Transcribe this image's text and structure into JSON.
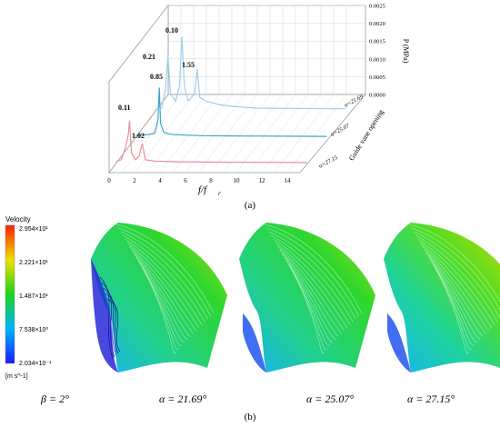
{
  "panel_a": {
    "caption": "(a)",
    "chart_data": {
      "type": "line",
      "projection": "3d-waterfall",
      "xlabel": "f/f",
      "xlabel_sub": "r",
      "zlabel": "P (MPa)",
      "ylabel": "Guide vane opening",
      "x_ticks": [
        "0",
        "2",
        "4",
        "6",
        "8",
        "10",
        "12",
        "14"
      ],
      "z_ticks": [
        "0.0000",
        "0.0005",
        "0.0010",
        "0.0015",
        "0.0020",
        "0.0025"
      ],
      "xlim": [
        0,
        15
      ],
      "zlim": [
        0,
        0.0025
      ],
      "series": [
        {
          "name": "α=27.15",
          "color": "#e88f9c",
          "points": [
            [
              0,
              5e-05
            ],
            [
              0.4,
              0.0001
            ],
            [
              0.7,
              0.0004
            ],
            [
              0.95,
              0.0008
            ],
            [
              1.05,
              0.0012
            ],
            [
              1.2,
              0.0003
            ],
            [
              1.5,
              0.0001
            ],
            [
              1.8,
              0.0002
            ],
            [
              2.04,
              0.00055
            ],
            [
              2.3,
              0.0001
            ],
            [
              3,
              6e-05
            ],
            [
              5,
              4e-05
            ],
            [
              8,
              3e-05
            ],
            [
              15,
              2e-05
            ]
          ]
        },
        {
          "name": "α=25.07",
          "color": "#3aa6c7",
          "points": [
            [
              0,
              5e-05
            ],
            [
              1,
              8e-05
            ],
            [
              1.5,
              0.00012
            ],
            [
              1.75,
              0.0005
            ],
            [
              1.85,
              0.0014
            ],
            [
              1.95,
              0.0004
            ],
            [
              2.2,
              0.00015
            ],
            [
              2.6,
              0.0001
            ],
            [
              3,
              8e-05
            ],
            [
              5,
              5e-05
            ],
            [
              8,
              4e-05
            ],
            [
              15,
              3e-05
            ]
          ]
        },
        {
          "name": "α=21.69",
          "color": "#9fd0ea",
          "points": [
            [
              0,
              5e-05
            ],
            [
              0.5,
              0.0001
            ],
            [
              0.8,
              0.0006
            ],
            [
              1,
              0.0016
            ],
            [
              1.2,
              0.0005
            ],
            [
              1.6,
              0.0003
            ],
            [
              1.9,
              0.0007
            ],
            [
              2.1,
              0.0021
            ],
            [
              2.3,
              0.0007
            ],
            [
              2.6,
              0.0003
            ],
            [
              3.1,
              0.0005
            ],
            [
              3.3,
              0.0012
            ],
            [
              3.5,
              0.0004
            ],
            [
              4,
              0.0003
            ],
            [
              4.5,
              0.00025
            ],
            [
              5,
              0.0002
            ],
            [
              6,
              0.00015
            ],
            [
              8,
              0.0001
            ],
            [
              15,
              8e-05
            ]
          ]
        }
      ],
      "annotations": [
        "0.10",
        "0.21",
        "0.85",
        "1.55",
        "0.11",
        "1.02"
      ]
    }
  },
  "panel_b": {
    "caption": "(b)",
    "colorbar": {
      "title": "Velocity",
      "unit": "[m s^-1]",
      "ticks": [
        "2.954×10¹",
        "2.221×10¹",
        "1.487×10¹",
        "7.538×10⁰",
        "2.034×10⁻¹"
      ]
    },
    "subplots": [
      {
        "label": "β = 2°"
      },
      {
        "label": "α = 21.69°"
      },
      {
        "label": "α = 25.07°"
      },
      {
        "label": "α = 27.15°"
      }
    ]
  }
}
